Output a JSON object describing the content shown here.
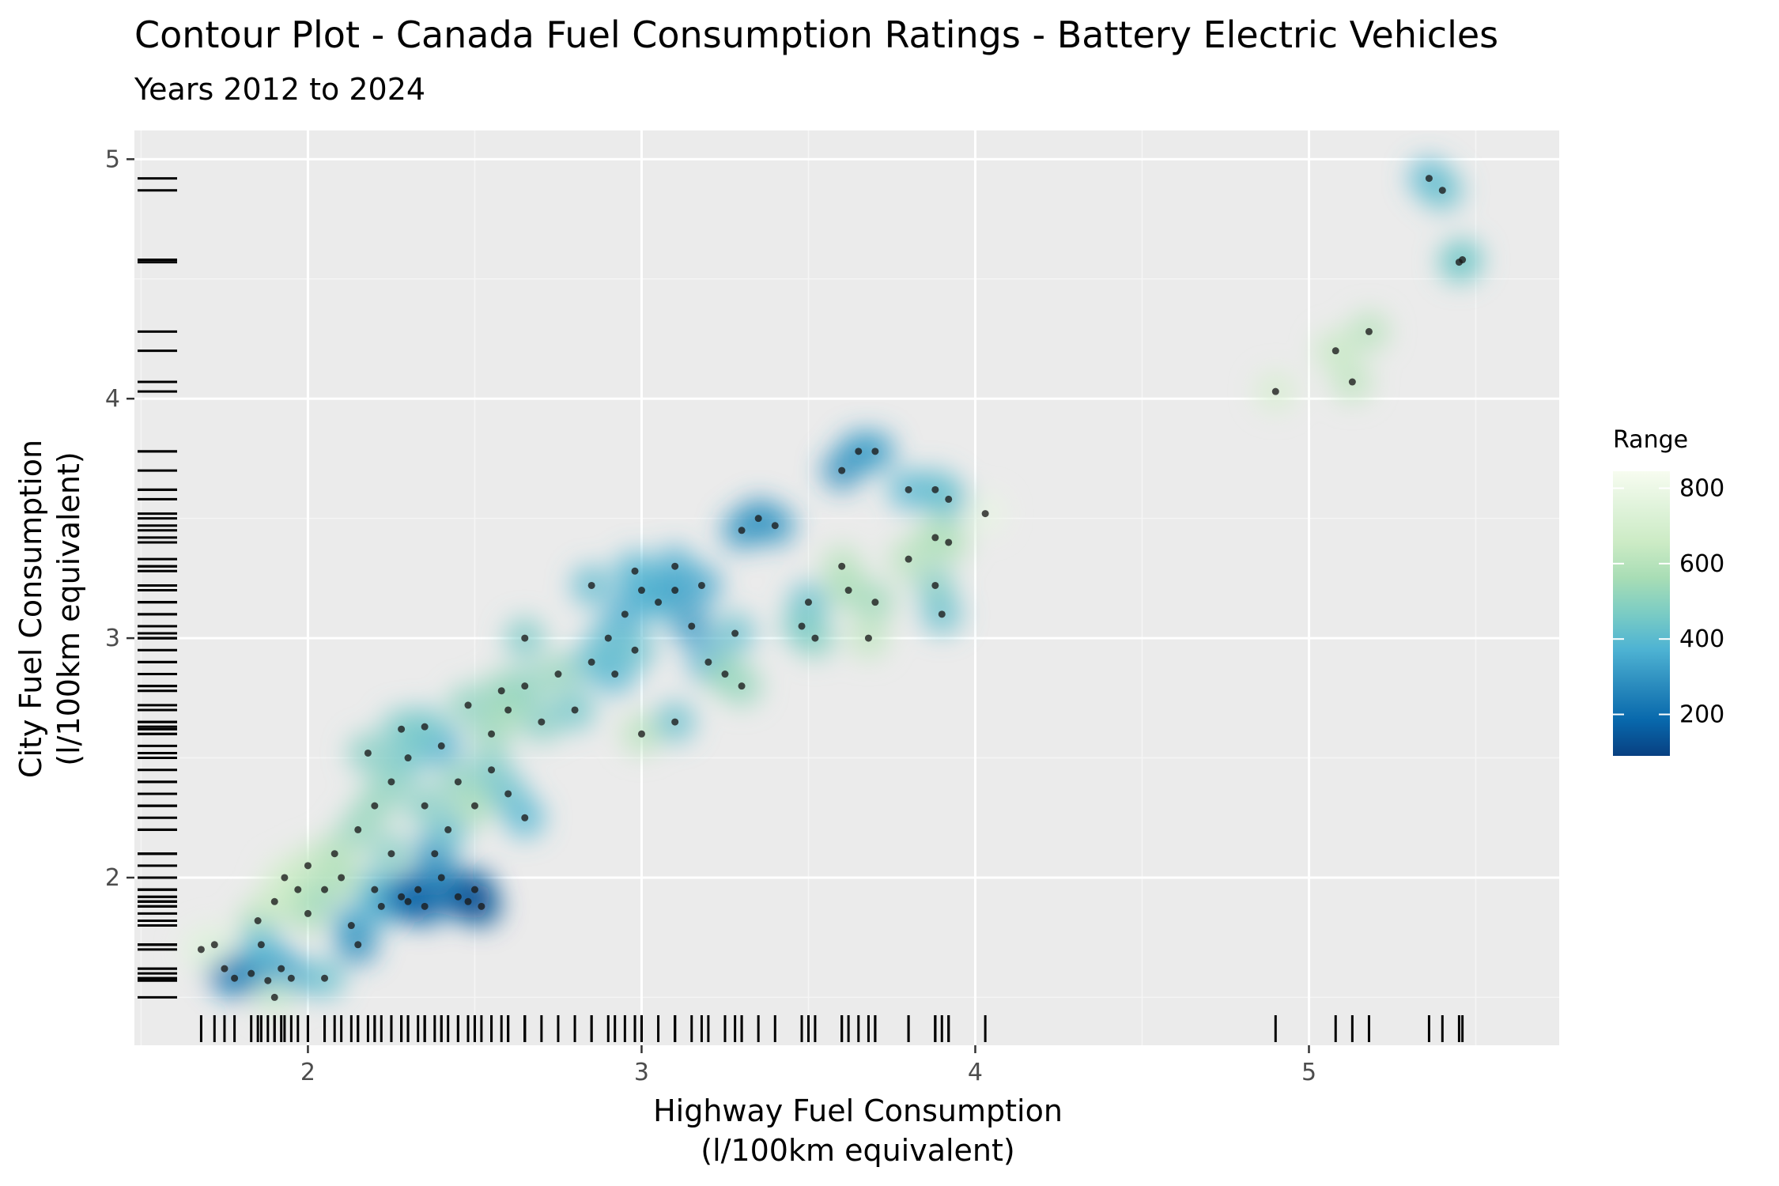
{
  "chart_data": {
    "type": "scatter",
    "title": "Contour Plot - Canada Fuel Consumption Ratings - Battery Electric Vehicles",
    "subtitle": "Years 2012 to 2024",
    "xlabel_lines": [
      "Highway Fuel Consumption",
      "(l/100km equivalent)"
    ],
    "ylabel_lines": [
      "City Fuel Consumption",
      "(l/100km equivalent)"
    ],
    "xlim": [
      1.48,
      5.75
    ],
    "ylim": [
      1.3,
      5.12
    ],
    "x_ticks": [
      2,
      3,
      4,
      5
    ],
    "y_ticks": [
      2,
      3,
      4,
      5
    ],
    "grid": true,
    "rug_marks": true,
    "legend": {
      "title": "Range",
      "position": "right",
      "min": 90,
      "max": 845,
      "ticks": [
        200,
        400,
        600,
        800
      ],
      "colors": [
        "#084081",
        "#0868ac",
        "#2b8cbe",
        "#4eb3d3",
        "#7bccc4",
        "#a8ddb5",
        "#ccebc5",
        "#e0f3db",
        "#f7fcf0"
      ]
    },
    "colors": {
      "panel": "#ebebeb",
      "grid_major": "#ffffff",
      "point": "#1a1a1a",
      "rug": "#000000"
    },
    "points": [
      {
        "x": 1.75,
        "y": 1.62,
        "r": 250
      },
      {
        "x": 1.78,
        "y": 1.58,
        "r": 240
      },
      {
        "x": 1.83,
        "y": 1.6,
        "r": 260
      },
      {
        "x": 1.88,
        "y": 1.57,
        "r": 300
      },
      {
        "x": 1.92,
        "y": 1.62,
        "r": 320
      },
      {
        "x": 1.95,
        "y": 1.58,
        "r": 350
      },
      {
        "x": 1.85,
        "y": 1.82,
        "r": 600
      },
      {
        "x": 1.9,
        "y": 1.9,
        "r": 650
      },
      {
        "x": 1.93,
        "y": 2.0,
        "r": 700
      },
      {
        "x": 1.97,
        "y": 1.95,
        "r": 640
      },
      {
        "x": 1.86,
        "y": 1.72,
        "r": 380
      },
      {
        "x": 2.0,
        "y": 1.85,
        "r": 560
      },
      {
        "x": 2.05,
        "y": 1.95,
        "r": 520
      },
      {
        "x": 2.1,
        "y": 2.0,
        "r": 600
      },
      {
        "x": 2.13,
        "y": 1.8,
        "r": 340
      },
      {
        "x": 2.15,
        "y": 1.72,
        "r": 280
      },
      {
        "x": 2.2,
        "y": 1.95,
        "r": 420
      },
      {
        "x": 2.22,
        "y": 1.88,
        "r": 350
      },
      {
        "x": 2.25,
        "y": 2.1,
        "r": 480
      },
      {
        "x": 2.28,
        "y": 1.92,
        "r": 250
      },
      {
        "x": 2.3,
        "y": 1.9,
        "r": 200
      },
      {
        "x": 2.33,
        "y": 1.95,
        "r": 180
      },
      {
        "x": 2.35,
        "y": 1.88,
        "r": 160
      },
      {
        "x": 2.38,
        "y": 2.1,
        "r": 300
      },
      {
        "x": 2.4,
        "y": 2.0,
        "r": 260
      },
      {
        "x": 2.42,
        "y": 2.2,
        "r": 420
      },
      {
        "x": 2.45,
        "y": 1.92,
        "r": 200
      },
      {
        "x": 2.48,
        "y": 1.9,
        "r": 150
      },
      {
        "x": 2.5,
        "y": 1.95,
        "r": 140
      },
      {
        "x": 2.52,
        "y": 1.88,
        "r": 130
      },
      {
        "x": 2.2,
        "y": 2.3,
        "r": 520
      },
      {
        "x": 2.25,
        "y": 2.4,
        "r": 500
      },
      {
        "x": 2.3,
        "y": 2.5,
        "r": 440
      },
      {
        "x": 2.35,
        "y": 2.3,
        "r": 480
      },
      {
        "x": 2.4,
        "y": 2.55,
        "r": 360
      },
      {
        "x": 2.45,
        "y": 2.4,
        "r": 500
      },
      {
        "x": 2.5,
        "y": 2.3,
        "r": 560
      },
      {
        "x": 2.55,
        "y": 2.45,
        "r": 460
      },
      {
        "x": 2.6,
        "y": 2.35,
        "r": 420
      },
      {
        "x": 2.65,
        "y": 2.25,
        "r": 380
      },
      {
        "x": 2.55,
        "y": 2.6,
        "r": 520
      },
      {
        "x": 2.6,
        "y": 2.7,
        "r": 560
      },
      {
        "x": 2.65,
        "y": 2.8,
        "r": 500
      },
      {
        "x": 2.7,
        "y": 2.65,
        "r": 480
      },
      {
        "x": 2.75,
        "y": 2.85,
        "r": 520
      },
      {
        "x": 2.8,
        "y": 2.7,
        "r": 440
      },
      {
        "x": 2.85,
        "y": 2.9,
        "r": 420
      },
      {
        "x": 2.9,
        "y": 3.0,
        "r": 400
      },
      {
        "x": 2.95,
        "y": 3.1,
        "r": 360
      },
      {
        "x": 3.0,
        "y": 3.2,
        "r": 340
      },
      {
        "x": 2.92,
        "y": 2.85,
        "r": 380
      },
      {
        "x": 2.98,
        "y": 2.95,
        "r": 420
      },
      {
        "x": 3.05,
        "y": 3.15,
        "r": 380
      },
      {
        "x": 3.1,
        "y": 3.2,
        "r": 320
      },
      {
        "x": 3.15,
        "y": 3.05,
        "r": 300
      },
      {
        "x": 3.2,
        "y": 2.9,
        "r": 360
      },
      {
        "x": 3.25,
        "y": 2.85,
        "r": 540
      },
      {
        "x": 3.3,
        "y": 2.8,
        "r": 520
      },
      {
        "x": 3.0,
        "y": 2.6,
        "r": 600
      },
      {
        "x": 3.1,
        "y": 2.65,
        "r": 420
      },
      {
        "x": 3.3,
        "y": 3.45,
        "r": 300
      },
      {
        "x": 3.35,
        "y": 3.5,
        "r": 280
      },
      {
        "x": 3.4,
        "y": 3.47,
        "r": 300
      },
      {
        "x": 3.5,
        "y": 3.15,
        "r": 420
      },
      {
        "x": 3.52,
        "y": 3.0,
        "r": 500
      },
      {
        "x": 3.48,
        "y": 3.05,
        "r": 460
      },
      {
        "x": 3.6,
        "y": 3.3,
        "r": 600
      },
      {
        "x": 3.62,
        "y": 3.2,
        "r": 560
      },
      {
        "x": 3.7,
        "y": 3.15,
        "r": 540
      },
      {
        "x": 3.68,
        "y": 3.0,
        "r": 620
      },
      {
        "x": 3.6,
        "y": 3.7,
        "r": 280
      },
      {
        "x": 3.65,
        "y": 3.78,
        "r": 300
      },
      {
        "x": 3.7,
        "y": 3.78,
        "r": 320
      },
      {
        "x": 3.8,
        "y": 3.62,
        "r": 380
      },
      {
        "x": 3.88,
        "y": 3.62,
        "r": 400
      },
      {
        "x": 3.92,
        "y": 3.58,
        "r": 420
      },
      {
        "x": 3.8,
        "y": 3.33,
        "r": 600
      },
      {
        "x": 3.88,
        "y": 3.42,
        "r": 560
      },
      {
        "x": 3.92,
        "y": 3.4,
        "r": 580
      },
      {
        "x": 3.88,
        "y": 3.22,
        "r": 480
      },
      {
        "x": 3.9,
        "y": 3.1,
        "r": 420
      },
      {
        "x": 4.03,
        "y": 3.52,
        "r": 780
      },
      {
        "x": 1.68,
        "y": 1.7,
        "r": 760
      },
      {
        "x": 1.72,
        "y": 1.72,
        "r": 740
      },
      {
        "x": 1.9,
        "y": 1.5,
        "r": 700
      },
      {
        "x": 2.05,
        "y": 1.58,
        "r": 420
      },
      {
        "x": 2.0,
        "y": 2.05,
        "r": 650
      },
      {
        "x": 2.08,
        "y": 2.1,
        "r": 580
      },
      {
        "x": 2.15,
        "y": 2.2,
        "r": 520
      },
      {
        "x": 2.18,
        "y": 2.52,
        "r": 480
      },
      {
        "x": 2.28,
        "y": 2.62,
        "r": 460
      },
      {
        "x": 2.35,
        "y": 2.63,
        "r": 440
      },
      {
        "x": 2.48,
        "y": 2.72,
        "r": 500
      },
      {
        "x": 2.58,
        "y": 2.78,
        "r": 520
      },
      {
        "x": 2.65,
        "y": 3.0,
        "r": 460
      },
      {
        "x": 2.85,
        "y": 3.22,
        "r": 400
      },
      {
        "x": 2.98,
        "y": 3.28,
        "r": 380
      },
      {
        "x": 3.1,
        "y": 3.3,
        "r": 360
      },
      {
        "x": 3.18,
        "y": 3.22,
        "r": 340
      },
      {
        "x": 3.28,
        "y": 3.02,
        "r": 420
      },
      {
        "x": 4.9,
        "y": 4.03,
        "r": 700
      },
      {
        "x": 5.08,
        "y": 4.2,
        "r": 640
      },
      {
        "x": 5.13,
        "y": 4.07,
        "r": 620
      },
      {
        "x": 5.18,
        "y": 4.28,
        "r": 600
      },
      {
        "x": 5.36,
        "y": 4.92,
        "r": 380
      },
      {
        "x": 5.4,
        "y": 4.87,
        "r": 420
      },
      {
        "x": 5.45,
        "y": 4.57,
        "r": 460
      },
      {
        "x": 5.46,
        "y": 4.58,
        "r": 440
      }
    ]
  }
}
